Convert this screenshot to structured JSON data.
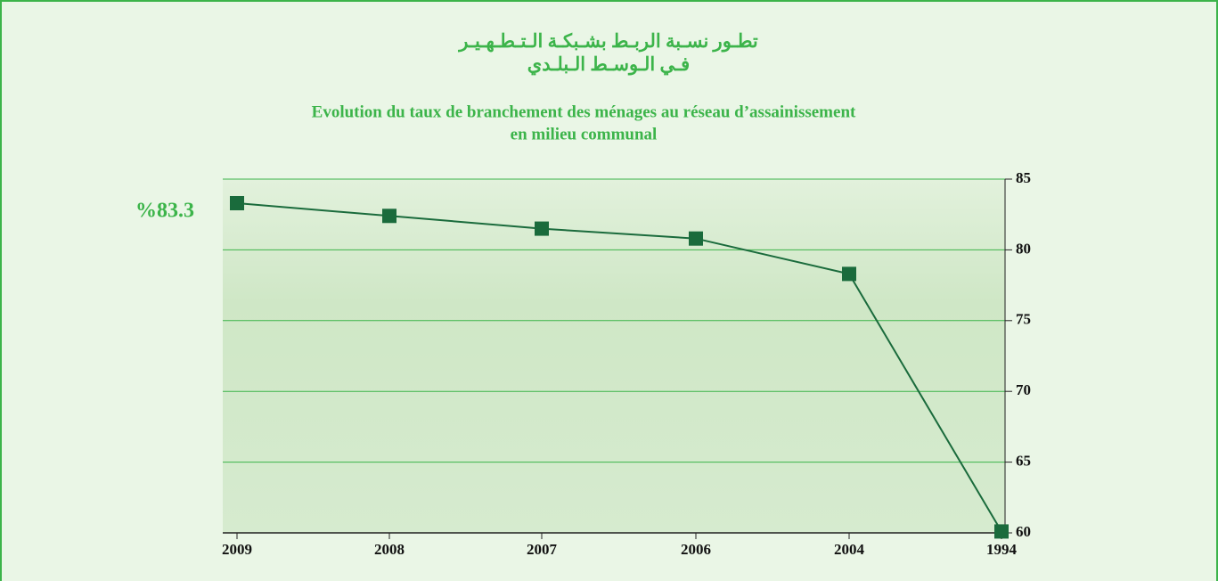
{
  "chart_data": {
    "type": "line",
    "title": [
      "تطـور نسـبة الربـط بشـبكـة الـتـطـهـيـر",
      "فـي الـوسـط الـبلـدي"
    ],
    "subtitle": [
      "Evolution du taux de branchement des ménages au réseau d’assainissement",
      "en milieu communal"
    ],
    "categories": [
      "2009",
      "2008",
      "2007",
      "2006",
      "2004",
      "1994"
    ],
    "series": [
      {
        "color": "#1a6b3c",
        "values": [
          83.3,
          82.4,
          81.5,
          80.8,
          78.3,
          60.1
        ],
        "value_labels": [
          "%83.3",
          null,
          null,
          null,
          null,
          null
        ]
      }
    ],
    "ylim": [
      60,
      85
    ],
    "yticks": [
      60,
      65,
      70,
      75,
      80,
      85
    ],
    "grid": true,
    "y_axis_side": "right"
  }
}
